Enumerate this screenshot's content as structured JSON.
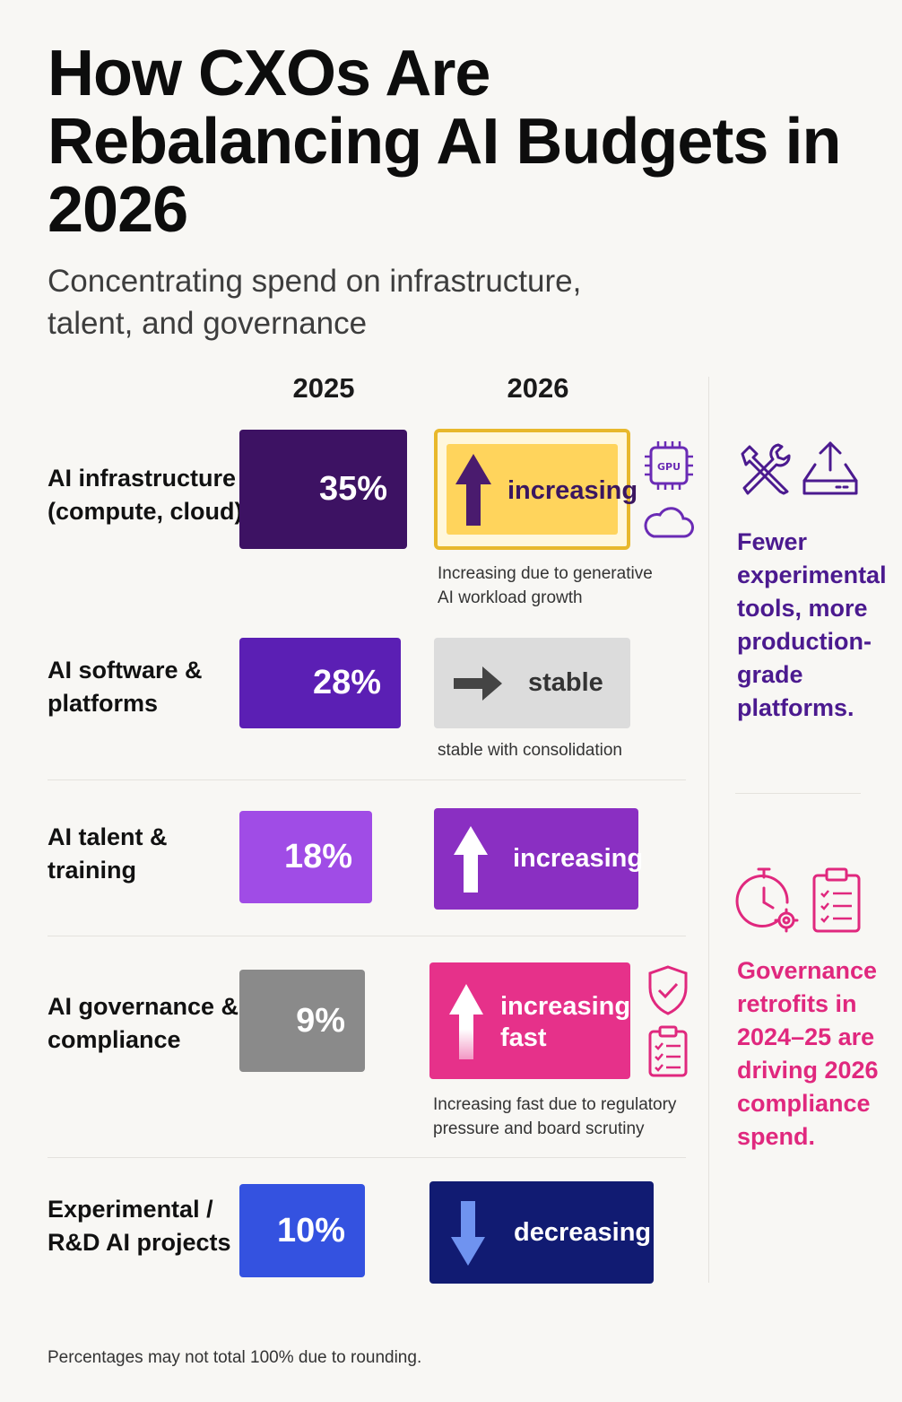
{
  "title": "How CXOs Are Rebalancing AI Budgets in 2026",
  "subtitle": "Concentrating spend on infrastructure, talent, and governance",
  "columns": {
    "y2025": "2025",
    "y2026": "2026"
  },
  "rows": [
    {
      "label_line1": "AI infrastructure",
      "label_line2": "(compute, cloud)",
      "value_label": "35%",
      "trend": "increasing",
      "note_line1": "Increasing due to generative",
      "note_line2": "AI workload growth",
      "color": "#3d1263",
      "trend_color": "#ffd45c",
      "trend_border": "#e8b82c",
      "icons": [
        "gpu-chip-icon",
        "cloud-icon"
      ]
    },
    {
      "label_line1": "AI software &",
      "label_line2": "platforms",
      "value_label": "28%",
      "trend": "stable",
      "note_line1": "stable with consolidation",
      "note_line2": "",
      "color": "#5b1fb4",
      "trend_color": "#dcdcdc"
    },
    {
      "label_line1": "AI talent &",
      "label_line2": "training",
      "value_label": "18%",
      "trend": "increasing",
      "color": "#a04ce6",
      "trend_color": "#8a2fc2"
    },
    {
      "label_line1": "AI governance &",
      "label_line2": "compliance",
      "value_label": "9%",
      "trend_line1": "increasing",
      "trend_line2": "fast",
      "note_line1": "Increasing fast due to regulatory",
      "note_line2": "pressure and board scrutiny",
      "color": "#8a8a8a",
      "trend_color": "#e6318a",
      "icons": [
        "shield-check-icon",
        "clipboard-checklist-icon"
      ]
    },
    {
      "label_line1": "Experimental /",
      "label_line2": "R&D AI projects",
      "value_label": "10%",
      "trend": "decreasing",
      "color": "#3452e0",
      "trend_color": "#111b72"
    }
  ],
  "side": {
    "top_lines": [
      "Fewer",
      "experimental",
      "tools, more",
      "production-",
      "grade",
      "platforms."
    ],
    "top_color": "#4b1a8f",
    "top_icons": [
      "tools-icon",
      "deploy-upload-icon"
    ],
    "bottom_lines": [
      "Governance",
      "retrofits in",
      "2024–25 are",
      "driving 2026",
      "compliance",
      "spend."
    ],
    "bottom_color": "#e0287e",
    "bottom_icons": [
      "stopwatch-gear-icon",
      "clipboard-checklist-icon"
    ]
  },
  "footer": "Percentages may not total 100% due to rounding.",
  "chart_data": {
    "type": "table",
    "title": "How CXOs Are Rebalancing AI Budgets in 2026",
    "categories": [
      "AI infrastructure (compute, cloud)",
      "AI software & platforms",
      "AI talent & training",
      "AI governance & compliance",
      "Experimental / R&D AI projects"
    ],
    "series": [
      {
        "name": "2025",
        "values": [
          35,
          28,
          18,
          9,
          10
        ]
      },
      {
        "name": "2026",
        "values": [
          "increasing",
          "stable",
          "increasing",
          "increasing fast",
          "decreasing"
        ]
      }
    ]
  }
}
